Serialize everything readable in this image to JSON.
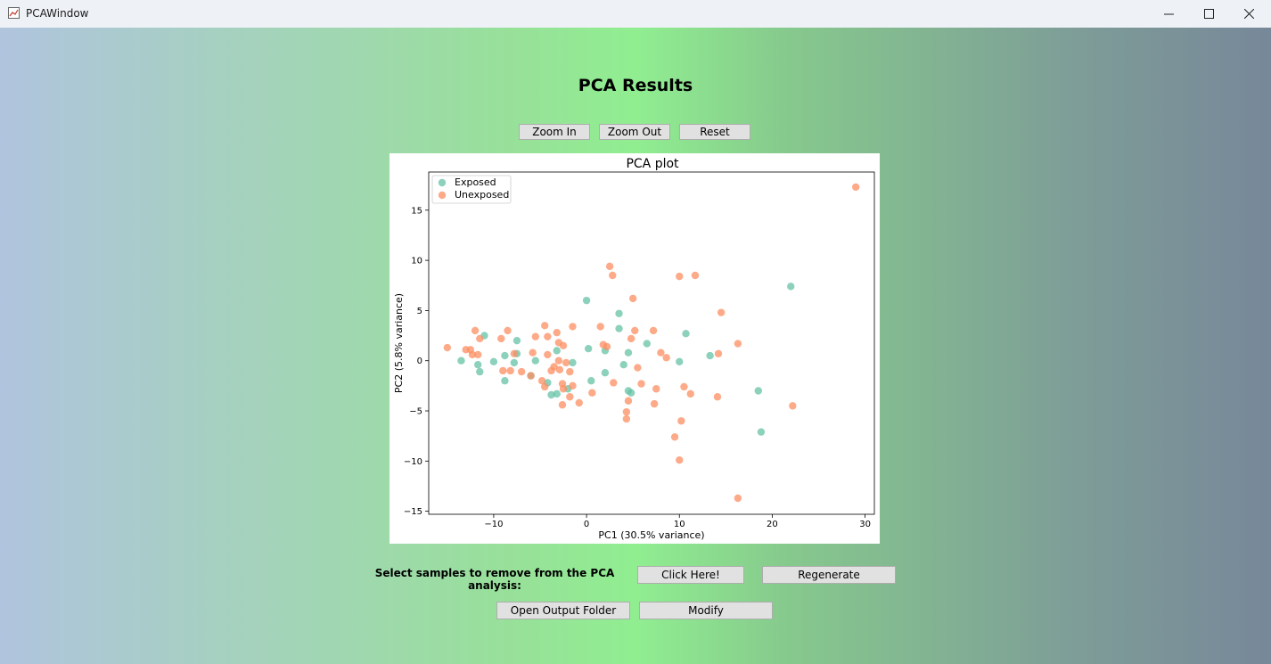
{
  "window": {
    "title": "PCAWindow",
    "icon": "chart-icon"
  },
  "page": {
    "title": "PCA Results"
  },
  "zoom_controls": {
    "zoom_in": "Zoom In",
    "zoom_out": "Zoom Out",
    "reset": "Reset"
  },
  "bottom": {
    "prompt": "Select samples to remove from the PCA analysis:",
    "click_here": "Click Here!",
    "regenerate": "Regenerate",
    "open_folder": "Open Output Folder",
    "modify": "Modify"
  },
  "chart_data": {
    "type": "scatter",
    "title": "PCA plot",
    "xlabel": "PC1 (30.5% variance)",
    "ylabel": "PC2 (5.8% variance)",
    "xlim": [
      -17,
      31
    ],
    "ylim": [
      -15.3,
      18.8
    ],
    "xticks": [
      -10,
      0,
      10,
      20,
      30
    ],
    "yticks": [
      -15,
      -10,
      -5,
      0,
      5,
      10,
      15
    ],
    "legend_position": "top-left",
    "grid": false,
    "series": [
      {
        "name": "Exposed",
        "color": "#66c2a5",
        "points": [
          [
            0,
            6
          ],
          [
            22,
            7.4
          ],
          [
            3.5,
            4.7
          ],
          [
            -11,
            2.5
          ],
          [
            -7.5,
            2
          ],
          [
            3.5,
            3.2
          ],
          [
            10.7,
            2.7
          ],
          [
            6.5,
            1.7
          ],
          [
            0.2,
            1.2
          ],
          [
            2,
            1
          ],
          [
            -3.2,
            1
          ],
          [
            -1.5,
            -0.2
          ],
          [
            -8.8,
            0.5
          ],
          [
            -7.5,
            0.7
          ],
          [
            -10,
            -0.1
          ],
          [
            -13.5,
            0
          ],
          [
            -11.7,
            -0.4
          ],
          [
            -11.5,
            -1.1
          ],
          [
            -6,
            -1.5
          ],
          [
            -7.8,
            -0.2
          ],
          [
            -5.5,
            0
          ],
          [
            -8.8,
            -2
          ],
          [
            -4.2,
            -2.2
          ],
          [
            4,
            -0.4
          ],
          [
            4.5,
            0.8
          ],
          [
            10,
            -0.1
          ],
          [
            13.3,
            0.5
          ],
          [
            2,
            -1.2
          ],
          [
            0.5,
            -2
          ],
          [
            -2,
            -2.8
          ],
          [
            -3.8,
            -3.4
          ],
          [
            -3.2,
            -3.3
          ],
          [
            4.5,
            -3
          ],
          [
            4.8,
            -3.2
          ],
          [
            18.5,
            -3
          ],
          [
            18.8,
            -7.1
          ]
        ]
      },
      {
        "name": "Unexposed",
        "color": "#fc8d62",
        "points": [
          [
            29,
            17.3
          ],
          [
            2.5,
            9.4
          ],
          [
            2.8,
            8.5
          ],
          [
            10,
            8.4
          ],
          [
            11.7,
            8.5
          ],
          [
            5,
            6.2
          ],
          [
            14.5,
            4.8
          ],
          [
            -12,
            3
          ],
          [
            -8.5,
            3
          ],
          [
            -4.5,
            3.5
          ],
          [
            -1.5,
            3.4
          ],
          [
            1.5,
            3.4
          ],
          [
            5.2,
            3
          ],
          [
            7.2,
            3
          ],
          [
            -11.5,
            2.2
          ],
          [
            -9.2,
            2.2
          ],
          [
            -5.5,
            2.4
          ],
          [
            -4.2,
            2.4
          ],
          [
            -3.2,
            2.8
          ],
          [
            -3,
            1.8
          ],
          [
            -2.5,
            1.5
          ],
          [
            1.8,
            1.6
          ],
          [
            2.2,
            1.4
          ],
          [
            4.8,
            2.2
          ],
          [
            16.3,
            1.7
          ],
          [
            -13,
            1.1
          ],
          [
            -12.5,
            1.1
          ],
          [
            -12.3,
            0.6
          ],
          [
            -11.7,
            0.6
          ],
          [
            -7.8,
            0.7
          ],
          [
            -5.8,
            0.8
          ],
          [
            -4.2,
            0.6
          ],
          [
            -3,
            0
          ],
          [
            -2.2,
            -0.2
          ],
          [
            -15,
            1.3
          ],
          [
            -7,
            -1.1
          ],
          [
            -8.2,
            -1
          ],
          [
            -9,
            -1
          ],
          [
            -6,
            -1.5
          ],
          [
            -4.8,
            -2
          ],
          [
            -3.5,
            -0.6
          ],
          [
            -1.8,
            -1.1
          ],
          [
            -2.6,
            -2.3
          ],
          [
            -3.8,
            -1
          ],
          [
            -2.9,
            -0.9
          ],
          [
            -2.5,
            -2.8
          ],
          [
            -1.5,
            -2.5
          ],
          [
            -4.5,
            -2.6
          ],
          [
            -1.8,
            -3.6
          ],
          [
            -2.6,
            -4.4
          ],
          [
            -0.8,
            -4.2
          ],
          [
            0.6,
            -3.2
          ],
          [
            2.9,
            -2.2
          ],
          [
            4.5,
            -4
          ],
          [
            5.5,
            -0.7
          ],
          [
            5.9,
            -2.3
          ],
          [
            7.5,
            -2.8
          ],
          [
            7.3,
            -4.3
          ],
          [
            8,
            0.8
          ],
          [
            8.6,
            0.3
          ],
          [
            10.5,
            -2.6
          ],
          [
            11.2,
            -3.3
          ],
          [
            14.2,
            0.7
          ],
          [
            14.1,
            -3.6
          ],
          [
            22.2,
            -4.5
          ],
          [
            4.3,
            -5.1
          ],
          [
            4.3,
            -5.8
          ],
          [
            10.2,
            -6
          ],
          [
            9.5,
            -7.6
          ],
          [
            10,
            -9.9
          ],
          [
            16.3,
            -13.7
          ]
        ]
      }
    ]
  }
}
